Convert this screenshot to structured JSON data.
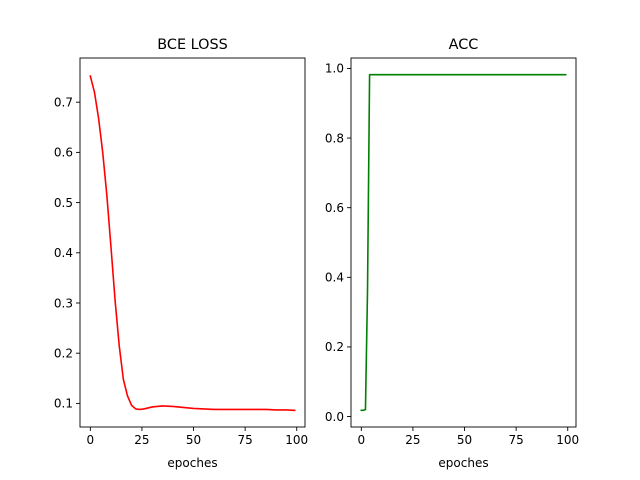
{
  "chart_data": [
    {
      "type": "line",
      "title": "BCE LOSS",
      "xlabel": "epoches",
      "ylabel": "",
      "xlim": [
        -5,
        104
      ],
      "ylim": [
        0.053,
        0.788
      ],
      "xticks": [
        0,
        25,
        50,
        75,
        100
      ],
      "yticks": [
        0.1,
        0.2,
        0.3,
        0.4,
        0.5,
        0.6,
        0.7
      ],
      "xtick_labels": [
        "0",
        "25",
        "50",
        "75",
        "100"
      ],
      "ytick_labels": [
        "0.1",
        "0.2",
        "0.3",
        "0.4",
        "0.5",
        "0.6",
        "0.7"
      ],
      "grid": false,
      "series": [
        {
          "color": "#ff0000",
          "x": [
            0,
            2,
            4,
            6,
            8,
            10,
            12,
            14,
            16,
            18,
            20,
            22,
            24,
            26,
            28,
            30,
            35,
            40,
            45,
            50,
            55,
            60,
            65,
            70,
            75,
            80,
            85,
            90,
            95,
            99
          ],
          "y": [
            0.752,
            0.72,
            0.668,
            0.6,
            0.515,
            0.412,
            0.305,
            0.215,
            0.148,
            0.115,
            0.096,
            0.089,
            0.088,
            0.089,
            0.091,
            0.093,
            0.095,
            0.094,
            0.092,
            0.09,
            0.089,
            0.088,
            0.088,
            0.088,
            0.088,
            0.088,
            0.088,
            0.087,
            0.087,
            0.086
          ]
        }
      ]
    },
    {
      "type": "line",
      "title": "ACC",
      "xlabel": "epoches",
      "ylabel": "",
      "xlim": [
        -5,
        104
      ],
      "ylim": [
        -0.03,
        1.03
      ],
      "xticks": [
        0,
        25,
        50,
        75,
        100
      ],
      "yticks": [
        0.0,
        0.2,
        0.4,
        0.6,
        0.8,
        1.0
      ],
      "xtick_labels": [
        "0",
        "25",
        "50",
        "75",
        "100"
      ],
      "ytick_labels": [
        "0.0",
        "0.2",
        "0.4",
        "0.6",
        "0.8",
        "1.0"
      ],
      "grid": false,
      "series": [
        {
          "color": "#008000",
          "x": [
            0,
            1,
            2,
            3,
            4,
            5,
            10,
            25,
            50,
            75,
            99
          ],
          "y": [
            0.018,
            0.018,
            0.02,
            0.36,
            0.982,
            0.982,
            0.982,
            0.982,
            0.982,
            0.982,
            0.982
          ]
        }
      ]
    }
  ]
}
